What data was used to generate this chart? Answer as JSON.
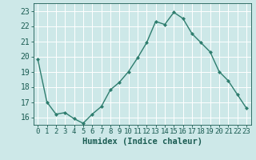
{
  "x": [
    0,
    1,
    2,
    3,
    4,
    5,
    6,
    7,
    8,
    9,
    10,
    11,
    12,
    13,
    14,
    15,
    16,
    17,
    18,
    19,
    20,
    21,
    22,
    23
  ],
  "y": [
    19.8,
    17.0,
    16.2,
    16.3,
    15.9,
    15.6,
    16.2,
    16.7,
    17.8,
    18.3,
    19.0,
    19.9,
    20.9,
    22.3,
    22.1,
    22.9,
    22.5,
    21.5,
    20.9,
    20.3,
    19.0,
    18.4,
    17.5,
    16.6
  ],
  "line_color": "#2e7d6e",
  "marker": "D",
  "marker_size": 2.0,
  "bg_color": "#cde8e8",
  "grid_color": "#b0d8d8",
  "xlabel": "Humidex (Indice chaleur)",
  "ylabel_ticks": [
    16,
    17,
    18,
    19,
    20,
    21,
    22,
    23
  ],
  "xlim": [
    -0.5,
    23.5
  ],
  "ylim": [
    15.5,
    23.5
  ],
  "tick_color": "#1a5c52",
  "label_fontsize": 7.5,
  "tick_fontsize": 6.5
}
